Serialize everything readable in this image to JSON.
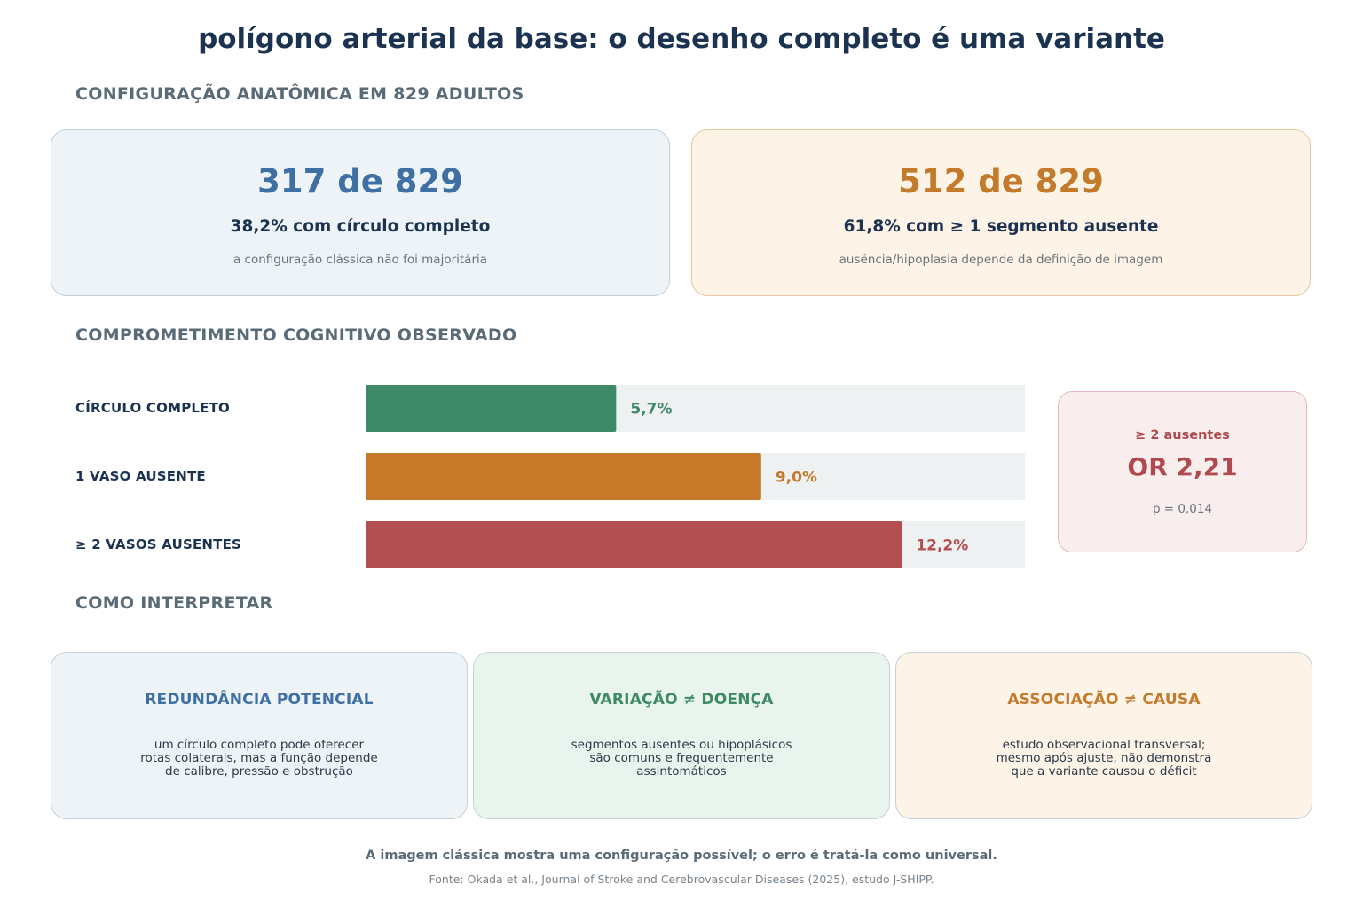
{
  "title": "polígono arterial da base: o desenho completo é uma variante",
  "sections": {
    "anatomy": "CONFIGURAÇÃO ANATÔMICA EM 829 ADULTOS",
    "cognitive": "COMPROMETIMENTO COGNITIVO OBSERVADO",
    "interpret": "COMO INTERPRETAR"
  },
  "stats": [
    {
      "big": "317 de 829",
      "mid": "38,2% com círculo completo",
      "small": "a configuração clássica não foi majoritária",
      "color": "#3e70a3"
    },
    {
      "big": "512 de 829",
      "mid": "61,8% com ≥ 1 segmento ausente",
      "small": "ausência/hipoplasia depende da definição de imagem",
      "color": "#c47a2b"
    }
  ],
  "chart_data": {
    "type": "bar",
    "orientation": "horizontal",
    "categories": [
      "CÍRCULO COMPLETO",
      "1 VASO AUSENTE",
      "≥ 2 VASOS AUSENTES"
    ],
    "values": [
      5.7,
      9.0,
      12.2
    ],
    "value_labels": [
      "5,7%",
      "9,0%",
      "12,2%"
    ],
    "colors": [
      "#3e8a68",
      "#c57929",
      "#b34f51"
    ],
    "track_color": "#edf1f2",
    "xlim": [
      0,
      15
    ],
    "grid": false
  },
  "odds_ratio": {
    "label": "≥ 2 ausentes",
    "value": "OR 2,21",
    "p": "p = 0,014"
  },
  "interpret_cards": [
    {
      "title": "REDUNDÂNCIA POTENCIAL",
      "text": "um círculo completo pode oferecer\nrotas colaterais, mas a função depende\nde calibre, pressão e obstrução"
    },
    {
      "title": "VARIAÇÃO ≠ DOENÇA",
      "text": "segmentos ausentes ou hipoplásicos\nsão comuns e frequentemente\nassintomáticos"
    },
    {
      "title": "ASSOCIAÇÃO ≠ CAUSA",
      "text": "estudo observacional transversal;\nmesmo após ajuste, não demonstra\nque a variante causou o déficit"
    }
  ],
  "footer": {
    "main": "A imagem clássica mostra uma configuração possível; o erro é tratá-la como universal.",
    "source": "Fonte: Okada et al., Journal of Stroke and Cerebrovascular Diseases (2025), estudo J-SHIPP."
  }
}
